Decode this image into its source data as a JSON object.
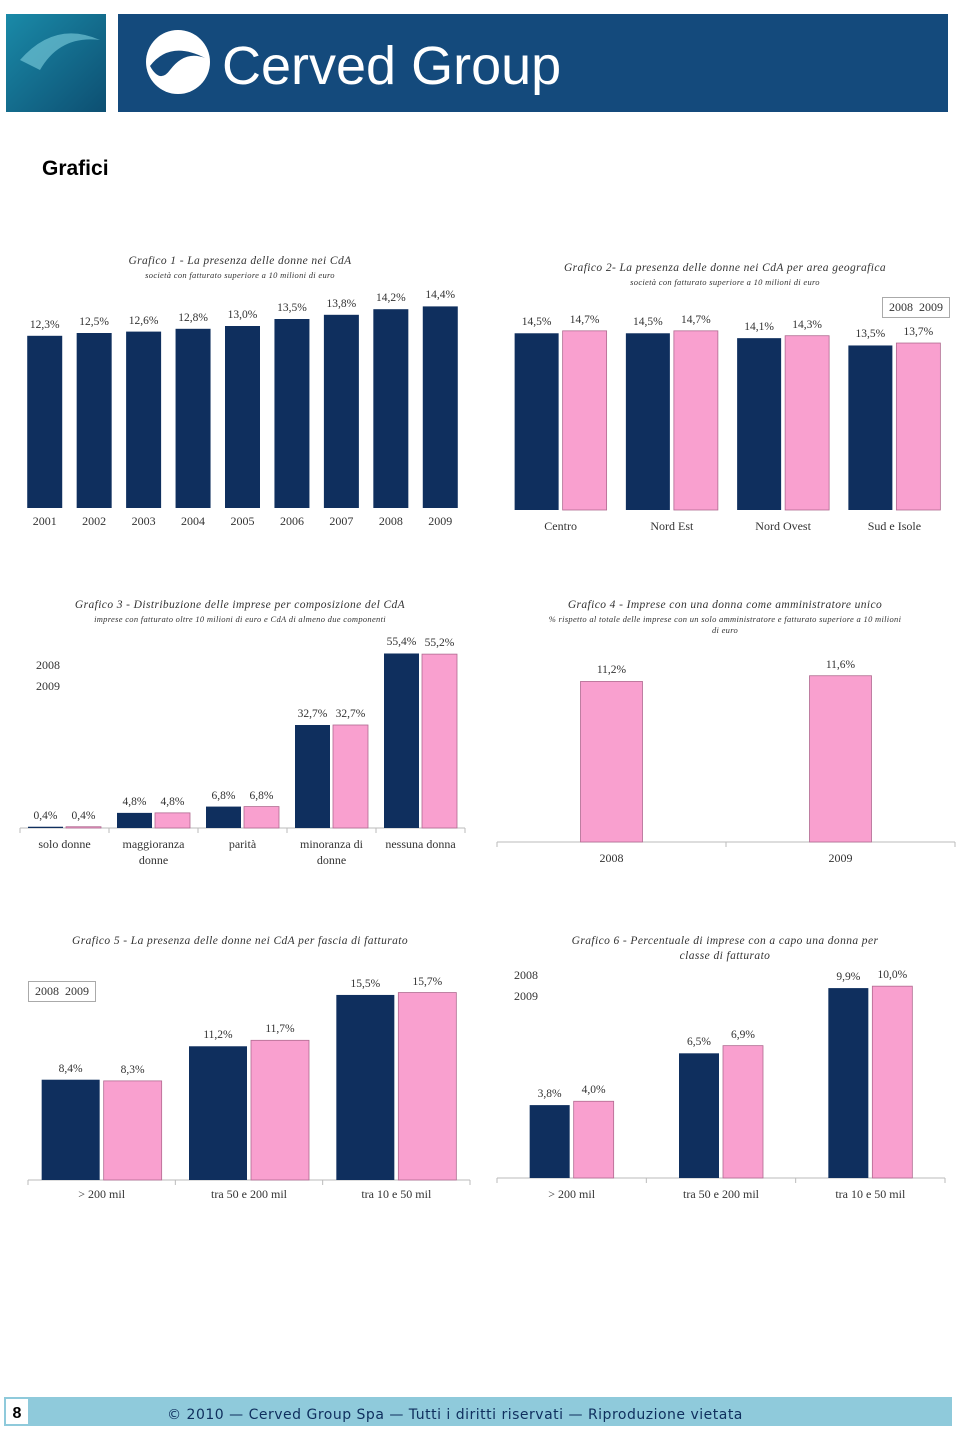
{
  "header": {
    "logo_text": "Cerved Group"
  },
  "heading": "Grafici",
  "chart_data": [
    {
      "type": "bar",
      "title": "Grafico 1 - La presenza delle donne nei CdA",
      "subtitle": "società con fatturato superiore a 10 milioni di euro",
      "categories": [
        "2001",
        "2002",
        "2003",
        "2004",
        "2005",
        "2006",
        "2007",
        "2008",
        "2009"
      ],
      "values": [
        12.3,
        12.5,
        12.6,
        12.8,
        13.0,
        13.5,
        13.8,
        14.2,
        14.4
      ],
      "value_labels": [
        "12,3%",
        "12,5%",
        "12,6%",
        "12,8%",
        "13,0%",
        "13,5%",
        "13,8%",
        "14,2%",
        "14,4%"
      ],
      "color": "#0f2f5e",
      "ylim": [
        0,
        16
      ]
    },
    {
      "type": "bar",
      "title": "Grafico 2- La presenza delle donne nei CdA per area geografica",
      "subtitle": "società con fatturato superiore a 10 milioni di euro",
      "categories": [
        "Centro",
        "Nord Est",
        "Nord Ovest",
        "Sud e Isole"
      ],
      "series": [
        {
          "name": "2008",
          "color": "#0f2f5e",
          "values": [
            14.5,
            14.5,
            14.1,
            13.5
          ],
          "value_labels": [
            "14,5%",
            "14,5%",
            "14,1%",
            "13,5%"
          ]
        },
        {
          "name": "2009",
          "color": "#f9a0cf",
          "values": [
            14.7,
            14.7,
            14.3,
            13.7
          ],
          "value_labels": [
            "14,7%",
            "14,7%",
            "14,3%",
            "13,7%"
          ]
        }
      ],
      "ylim": [
        0,
        16
      ],
      "legend": "upper right"
    },
    {
      "type": "bar",
      "title": "Grafico 3 - Distribuzione delle imprese per composizione del CdA",
      "subtitle": "imprese con fatturato oltre 10 milioni di euro e CdA di almeno due componenti",
      "categories": [
        "solo donne",
        "maggioranza donne",
        "parità",
        "minoranza di donne",
        "nessuna donna"
      ],
      "series": [
        {
          "name": "2008",
          "color": "#0f2f5e",
          "values": [
            0.4,
            4.8,
            6.8,
            32.7,
            55.4
          ],
          "value_labels": [
            "0,4%",
            "4,8%",
            "6,8%",
            "32,7%",
            "55,4%"
          ]
        },
        {
          "name": "2009",
          "color": "#f9a0cf",
          "values": [
            0.4,
            4.8,
            6.8,
            32.7,
            55.2
          ],
          "value_labels": [
            "0,4%",
            "4,8%",
            "6,8%",
            "32,7%",
            "55,2%"
          ]
        }
      ],
      "ylim": [
        0,
        60
      ],
      "legend": "left"
    },
    {
      "type": "bar",
      "title": "Grafico 4 - Imprese con una donna come amministratore unico",
      "subtitle": "% rispetto al totale delle imprese con un solo amministratore e fatturato superiore a 10 milioni di euro",
      "categories": [
        "2008",
        "2009"
      ],
      "values": [
        11.2,
        11.6
      ],
      "value_labels": [
        "11,2%",
        "11,6%"
      ],
      "color": "#f9a0cf",
      "ylim": [
        0,
        12
      ]
    },
    {
      "type": "bar",
      "title": "Grafico 5 - La presenza delle donne nei CdA per fascia di fatturato",
      "categories": [
        "> 200 mil",
        "tra 50 e 200 mil",
        "tra 10 e 50 mil"
      ],
      "series": [
        {
          "name": "2008",
          "color": "#0f2f5e",
          "values": [
            8.4,
            11.2,
            15.5
          ],
          "value_labels": [
            "8,4%",
            "11,2%",
            "15,5%"
          ]
        },
        {
          "name": "2009",
          "color": "#f9a0cf",
          "values": [
            8.3,
            11.7,
            15.7
          ],
          "value_labels": [
            "8,3%",
            "11,7%",
            "15,7%"
          ]
        }
      ],
      "ylim": [
        0,
        16.5
      ],
      "legend": "upper left"
    },
    {
      "type": "bar",
      "title": "Grafico 6 - Percentuale di imprese con a capo una donna per classe di fatturato",
      "categories": [
        "> 200 mil",
        "tra 50 e 200 mil",
        "tra 10 e 50 mil"
      ],
      "series": [
        {
          "name": "2008",
          "color": "#0f2f5e",
          "values": [
            3.8,
            6.5,
            9.9
          ],
          "value_labels": [
            "3,8%",
            "6,5%",
            "9,9%"
          ]
        },
        {
          "name": "2009",
          "color": "#f9a0cf",
          "values": [
            4.0,
            6.9,
            10.0
          ],
          "value_labels": [
            "4,0%",
            "6,9%",
            "10,0%"
          ]
        }
      ],
      "ylim": [
        0,
        11
      ],
      "legend": "upper left"
    }
  ],
  "footer": {
    "page_number": "8",
    "text": "© 2010 — Cerved Group Spa — Tutti i diritti riservati — Riproduzione vietata"
  }
}
